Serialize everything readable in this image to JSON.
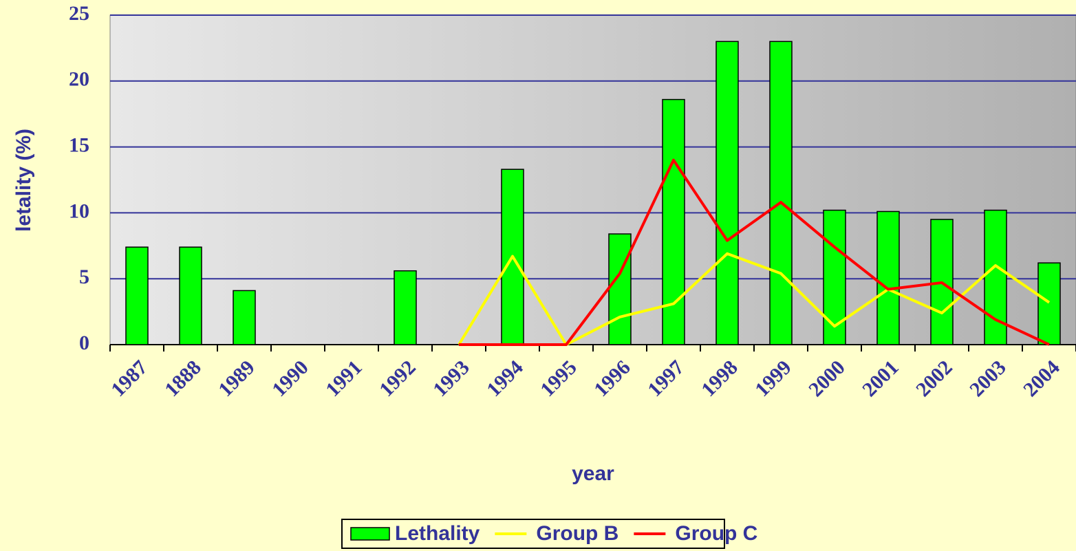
{
  "chart_data": {
    "type": "bar_line",
    "x_label": "year",
    "y_label": "letality (%)",
    "categories": [
      "1987",
      "1888",
      "1989",
      "1990",
      "1991",
      "1992",
      "1993",
      "1994",
      "1995",
      "1996",
      "1997",
      "1998",
      "1999",
      "2000",
      "2001",
      "2002",
      "2003",
      "2004"
    ],
    "series": [
      {
        "name": "Lethality",
        "type": "bar",
        "color": "#00ff00",
        "values": [
          7.4,
          7.4,
          4.1,
          0,
          0,
          5.6,
          0,
          13.3,
          0,
          8.4,
          18.6,
          23.0,
          23.0,
          10.2,
          10.1,
          9.5,
          10.2,
          6.2
        ]
      },
      {
        "name": "Group B",
        "type": "line",
        "color": "#ffff00",
        "values": [
          null,
          null,
          null,
          null,
          null,
          null,
          0,
          6.7,
          0,
          2.1,
          3.1,
          6.9,
          5.4,
          1.4,
          4.2,
          2.4,
          6.0,
          3.2
        ]
      },
      {
        "name": "Group C",
        "type": "line",
        "color": "#ff0000",
        "values": [
          null,
          null,
          null,
          null,
          null,
          null,
          0,
          0,
          0,
          5.4,
          14.0,
          7.9,
          10.8,
          7.4,
          4.2,
          4.7,
          1.9,
          0
        ]
      }
    ],
    "ylim": [
      0,
      25
    ],
    "yticks": [
      0,
      5,
      10,
      15,
      20,
      25
    ],
    "grid": true,
    "legend": "bottom"
  }
}
